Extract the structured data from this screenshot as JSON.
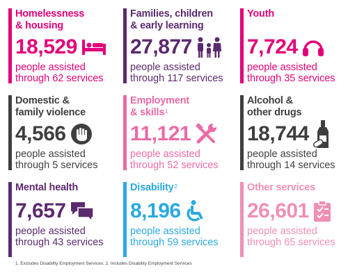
{
  "colors": {
    "magenta": "#e2007a",
    "purple": "#5b2a6e",
    "grey": "#3f3f3f",
    "pink": "#ec6aa5",
    "blue": "#2aa9e0",
    "lightpink": "#f08fb5"
  },
  "cells": [
    {
      "title1": "Homelessness",
      "title2": "& housing",
      "sup": "",
      "number": "18,529",
      "desc1": "people assisted",
      "desc2": "through 62 services",
      "icon": "bed-icon"
    },
    {
      "title1": "Families, children",
      "title2": "& early learning",
      "sup": "",
      "number": "27,877",
      "desc1": "people assisted",
      "desc2": "through 117 services",
      "icon": "family-icon"
    },
    {
      "title1": "Youth",
      "title2": "",
      "sup": "",
      "number": "7,724",
      "desc1": "people assisted",
      "desc2": "through 35 services",
      "icon": "headphones-icon"
    },
    {
      "title1": "Domestic &",
      "title2": "family violence",
      "sup": "",
      "number": "4,566",
      "desc1": "people assisted",
      "desc2": "through 5 services",
      "icon": "stop-hand-icon"
    },
    {
      "title1": "Employment",
      "title2": "& skills",
      "sup": "1",
      "number": "11,121",
      "desc1": "people assisted",
      "desc2": "through 52 services",
      "icon": "tools-icon"
    },
    {
      "title1": "Alcohol &",
      "title2": "other drugs",
      "sup": "",
      "number": "18,744",
      "desc1": "people assisted",
      "desc2": "through 14 services",
      "icon": "bottle-pill-icon"
    },
    {
      "title1": "Mental health",
      "title2": "",
      "sup": "",
      "number": "7,657",
      "desc1": "people assisted",
      "desc2": "through 43 services",
      "icon": "speech-bubbles-icon"
    },
    {
      "title1": "Disability",
      "title2": "",
      "sup": "2",
      "number": "8,196",
      "desc1": "people assisted",
      "desc2": "through 59 services",
      "icon": "wheelchair-icon"
    },
    {
      "title1": "Other services",
      "title2": "",
      "sup": "",
      "number": "26,601",
      "desc1": "people assisted",
      "desc2": "through 65 services",
      "icon": "clipboard-icon"
    }
  ],
  "footnote": "1. Excludes Disability Employment Services; 2. Includes Disability Employment Services"
}
